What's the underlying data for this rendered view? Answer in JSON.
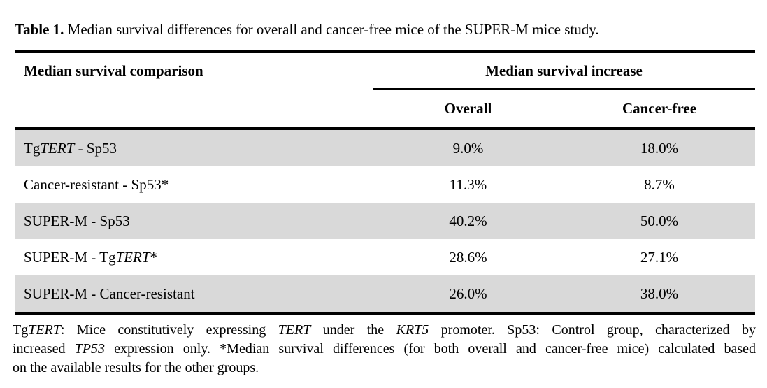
{
  "colors": {
    "stripe": "#d9d9d9",
    "rule": "#000000",
    "text": "#000000",
    "background": "#ffffff"
  },
  "caption": {
    "segments": [
      {
        "t": "Table 1.",
        "b": true
      },
      {
        "t": " Median survival differences for overall and cancer-free mice of the SUPER-M mice study."
      }
    ]
  },
  "table": {
    "header": {
      "comparison": "Median survival comparison",
      "group": "Median survival increase",
      "subcols": [
        "Overall",
        "Cancer-free"
      ]
    },
    "rows": [
      {
        "label_segments": [
          {
            "t": "Tg"
          },
          {
            "t": "TERT",
            "i": true
          },
          {
            "t": " - Sp53"
          }
        ],
        "overall": "9.0%",
        "cancer_free": "18.0%"
      },
      {
        "label_segments": [
          {
            "t": "Cancer-resistant - Sp53*"
          }
        ],
        "overall": "11.3%",
        "cancer_free": "8.7%"
      },
      {
        "label_segments": [
          {
            "t": "SUPER-M - Sp53"
          }
        ],
        "overall": "40.2%",
        "cancer_free": "50.0%"
      },
      {
        "label_segments": [
          {
            "t": "SUPER-M - Tg"
          },
          {
            "t": "TERT",
            "i": true
          },
          {
            "t": "*"
          }
        ],
        "overall": "28.6%",
        "cancer_free": "27.1%"
      },
      {
        "label_segments": [
          {
            "t": "SUPER-M - Cancer-resistant"
          }
        ],
        "overall": "26.0%",
        "cancer_free": "38.0%"
      }
    ]
  },
  "footnote": {
    "lines": [
      [
        {
          "t": "Tg"
        },
        {
          "t": "TERT",
          "i": true
        },
        {
          "t": ": Mice constitutively expressing "
        },
        {
          "t": "TERT",
          "i": true
        },
        {
          "t": " under the "
        },
        {
          "t": "KRT5",
          "i": true
        },
        {
          "t": " promoter. Sp53: Control group, characterized by"
        }
      ],
      [
        {
          "t": "increased "
        },
        {
          "t": "TP53",
          "i": true
        },
        {
          "t": " expression only. *Median survival differences (for both overall and cancer-free mice) calculated based"
        }
      ],
      [
        {
          "t": "on the available results for the other groups."
        }
      ]
    ]
  }
}
